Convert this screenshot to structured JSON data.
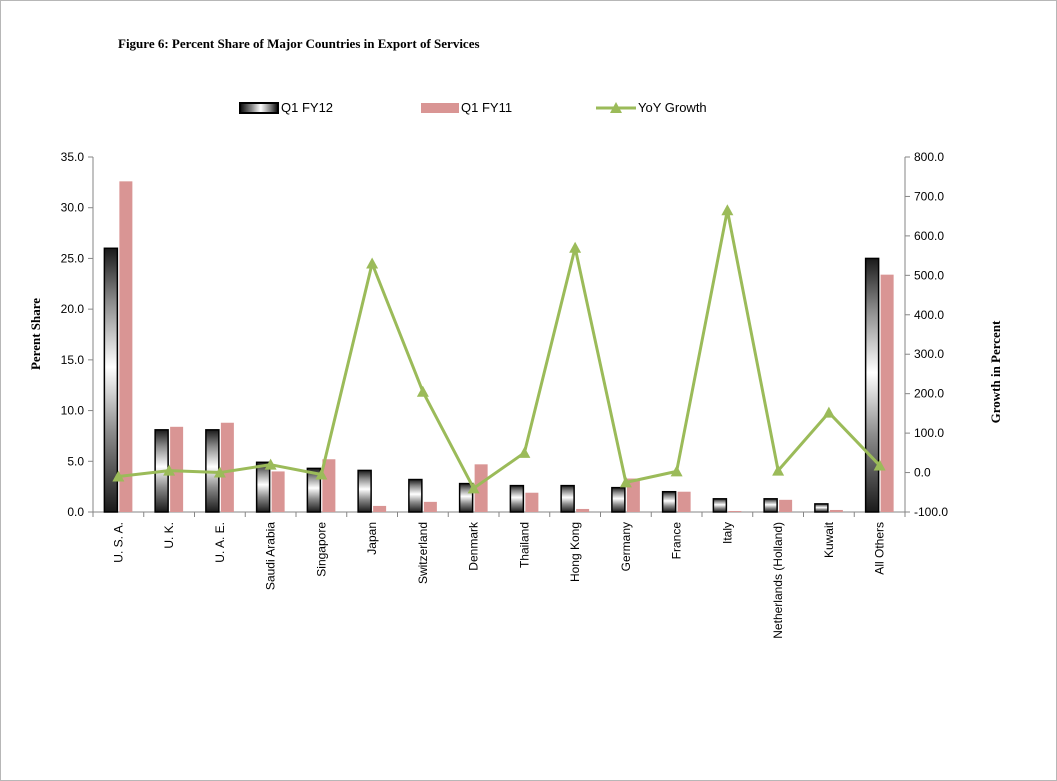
{
  "chart_data": {
    "type": "bar",
    "title": "Figure 6: Percent Share of Major Countries in Export of Services",
    "ylabel": "Perent Share",
    "y2label": "Growth in Percent",
    "ylim": [
      0,
      35
    ],
    "y2lim": [
      -100,
      800
    ],
    "yticks": [
      "0.0",
      "5.0",
      "10.0",
      "15.0",
      "20.0",
      "25.0",
      "30.0",
      "35.0"
    ],
    "y2ticks": [
      "-100.0",
      "0.0",
      "100.0",
      "200.0",
      "300.0",
      "400.0",
      "500.0",
      "600.0",
      "700.0",
      "800.0"
    ],
    "legend_position": "top",
    "categories": [
      "U. S. A.",
      "U. K.",
      "U. A. E.",
      "Saudi Arabia",
      "Singapore",
      "Japan",
      "Switzerland",
      "Denmark",
      "Thailand",
      "Hong Kong",
      "Germany",
      "France",
      "Italy",
      "Netherlands (Holland)",
      "Kuwait",
      "All Others"
    ],
    "series": [
      {
        "name": "Q1 FY12",
        "type": "bar",
        "axis": "left",
        "color": "#333333",
        "values": [
          26.0,
          8.1,
          8.1,
          4.9,
          4.3,
          4.1,
          3.2,
          2.8,
          2.6,
          2.6,
          2.4,
          2.0,
          1.3,
          1.3,
          0.8,
          25.0
        ]
      },
      {
        "name": "Q1 FY11",
        "type": "bar",
        "axis": "left",
        "color": "#d99594",
        "values": [
          32.6,
          8.4,
          8.8,
          4.0,
          5.2,
          0.6,
          1.0,
          4.7,
          1.9,
          0.3,
          3.3,
          2.0,
          0.1,
          1.2,
          0.2,
          23.4
        ]
      },
      {
        "name": "YoY Growth",
        "type": "line",
        "axis": "right",
        "color": "#9bbb59",
        "values": [
          -10,
          5,
          0,
          20,
          -5,
          530,
          205,
          -40,
          50,
          570,
          -25,
          3,
          665,
          5,
          152,
          18
        ]
      }
    ]
  }
}
